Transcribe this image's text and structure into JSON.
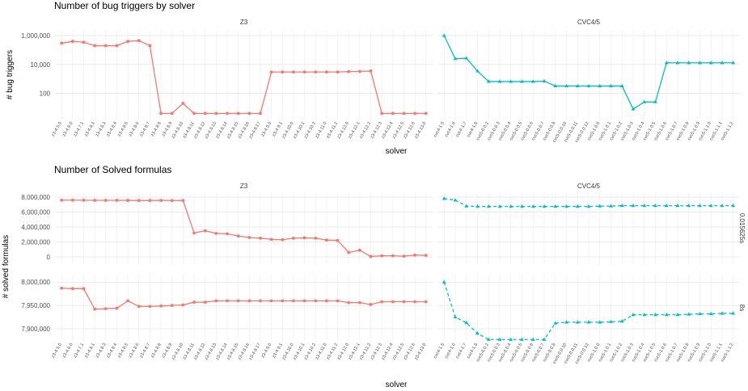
{
  "chart_data": [
    {
      "type": "line",
      "title": "Number of bug triggers by solver",
      "xlabel": "solver",
      "ylabel": "# bug triggers",
      "log_scale": true,
      "grid": true,
      "panels": [
        {
          "name": "Z3",
          "color": "#f8766d",
          "marker": "circle",
          "dash": "solid",
          "categories": [
            "z3-4.5.0",
            "z3-4.6.0",
            "z3-4.7.1",
            "z3-4.8.1",
            "z3-4.8.3",
            "z3-4.8.4",
            "z3-4.8.5",
            "z3-4.8.6",
            "z3-4.8.7",
            "z3-4.8.8",
            "z3-4.8.9",
            "z3-4.8.10",
            "z3-4.8.11",
            "z3-4.8.12",
            "z3-4.8.13",
            "z3-4.8.14",
            "z3-4.8.15",
            "z3-4.8.16",
            "z3-4.8.17",
            "z3-4.9.0",
            "z3-4.9.1",
            "z3-4.10.0",
            "z3-4.10.1",
            "z3-4.10.2",
            "z3-4.11.0",
            "z3-4.11.2",
            "z3-4.12.0",
            "z3-4.12.1",
            "z3-4.12.2",
            "z3-4.12.3",
            "z3-4.12.4",
            "z3-4.12.5",
            "z3-4.12.6",
            "z3-4.13.0"
          ]
        },
        {
          "name": "CVC4/5",
          "color": "#00bfc4",
          "marker": "triangle",
          "dash": "solid",
          "categories": [
            "cvc4-1.5",
            "cvc4-1.6",
            "cvc4-1.7",
            "cvc4-1.8",
            "cvc5-0.0.2",
            "cvc5-0.0.3",
            "cvc5-0.0.4",
            "cvc5-0.0.5",
            "cvc5-0.0.6",
            "cvc5-0.0.7",
            "cvc5-0.0.8",
            "cvc5-0.0.10",
            "cvc5-0.0.11",
            "cvc5-0.0.12",
            "cvc5-1.0.0",
            "cvc5-1.0.1",
            "cvc5-1.0.2",
            "cvc5-1.0.3",
            "cvc5-1.0.4",
            "cvc5-1.0.5",
            "cvc5-1.0.6",
            "cvc5-1.0.7",
            "cvc5-1.0.8",
            "cvc5-1.0.9",
            "cvc5-1.1.0",
            "cvc5-1.1.1",
            "cvc5-1.1.2"
          ]
        }
      ],
      "rows": [
        {
          "ylim": [
            1.5,
            2500000
          ],
          "yticks": [
            100,
            {
              "value": 10000,
              "label": "10,000"
            },
            {
              "value": 1000000,
              "label": "1,000,000"
            }
          ],
          "values": [
            [
              300000,
              400000,
              350000,
              200000,
              200000,
              200000,
              400000,
              450000,
              200000,
              4,
              4,
              20,
              4,
              4,
              4,
              4,
              4,
              4,
              4,
              3000,
              3000,
              3000,
              3000,
              3000,
              3000,
              3000,
              3200,
              3300,
              3500,
              4,
              4,
              4,
              4,
              4
            ],
            [
              1000000,
              25000,
              27000,
              3500,
              650,
              650,
              650,
              650,
              650,
              700,
              320,
              320,
              320,
              320,
              320,
              320,
              320,
              8,
              25,
              25,
              13000,
              13000,
              13000,
              13000,
              13000,
              13000,
              13000
            ]
          ]
        }
      ]
    },
    {
      "type": "line",
      "title": "Number of Solved formulas",
      "xlabel": "solver",
      "ylabel": "# solved formulas",
      "log_scale": false,
      "grid": true,
      "panels": [
        {
          "name": "Z3",
          "color": "#f8766d",
          "marker": "circle",
          "dash": "solid",
          "categories": [
            "z3-4.5.0",
            "z3-4.6.0",
            "z3-4.7.1",
            "z3-4.8.1",
            "z3-4.8.3",
            "z3-4.8.4",
            "z3-4.8.5",
            "z3-4.8.6",
            "z3-4.8.7",
            "z3-4.8.8",
            "z3-4.8.9",
            "z3-4.8.10",
            "z3-4.8.11",
            "z3-4.8.12",
            "z3-4.8.13",
            "z3-4.8.14",
            "z3-4.8.15",
            "z3-4.8.16",
            "z3-4.8.17",
            "z3-4.9.0",
            "z3-4.9.1",
            "z3-4.10.0",
            "z3-4.10.1",
            "z3-4.10.2",
            "z3-4.11.0",
            "z3-4.11.2",
            "z3-4.12.0",
            "z3-4.12.1",
            "z3-4.12.2",
            "z3-4.12.3",
            "z3-4.12.4",
            "z3-4.12.5",
            "z3-4.12.6",
            "z3-4.13.0"
          ]
        },
        {
          "name": "CVC4/5",
          "color": "#00bfc4",
          "marker": "triangle",
          "dash": "dashed",
          "categories": [
            "cvc4-1.5",
            "cvc4-1.6",
            "cvc4-1.7",
            "cvc4-1.8",
            "cvc5-0.0.2",
            "cvc5-0.0.3",
            "cvc5-0.0.4",
            "cvc5-0.0.5",
            "cvc5-0.0.6",
            "cvc5-0.0.7",
            "cvc5-0.0.8",
            "cvc5-0.0.10",
            "cvc5-0.0.11",
            "cvc5-0.0.12",
            "cvc5-1.0.0",
            "cvc5-1.0.1",
            "cvc5-1.0.2",
            "cvc5-1.0.3",
            "cvc5-1.0.4",
            "cvc5-1.0.5",
            "cvc5-1.0.6",
            "cvc5-1.0.7",
            "cvc5-1.0.8",
            "cvc5-1.0.9",
            "cvc5-1.1.0",
            "cvc5-1.1.1",
            "cvc5-1.1.2"
          ]
        }
      ],
      "rows": [
        {
          "name": "0.015625s",
          "ylim": [
            -970000,
            8650000
          ],
          "yticks": [
            0,
            {
              "value": 2000000,
              "label": "2,000,000"
            },
            {
              "value": 4000000,
              "label": "4,000,000"
            },
            {
              "value": 6000000,
              "label": "6,000,000"
            },
            {
              "value": 8000000,
              "label": "8,000,000"
            }
          ],
          "values": [
            [
              7600000,
              7600000,
              7580000,
              7570000,
              7570000,
              7570000,
              7560000,
              7550000,
              7550000,
              7560000,
              7540000,
              7550000,
              3200000,
              3500000,
              3150000,
              3100000,
              2800000,
              2600000,
              2500000,
              2350000,
              2300000,
              2500000,
              2550000,
              2500000,
              2250000,
              2200000,
              600000,
              900000,
              50000,
              150000,
              150000,
              100000,
              250000,
              200000
            ],
            [
              7800000,
              7600000,
              6800000,
              6750000,
              6750000,
              6750000,
              6750000,
              6750000,
              6750000,
              6750000,
              6750000,
              6750000,
              6750000,
              6750000,
              6800000,
              6800000,
              6850000,
              6850000,
              6850000,
              6850000,
              6850000,
              6850000,
              6850000,
              6850000,
              6850000,
              6850000,
              6850000
            ]
          ]
        },
        {
          "name": "8s",
          "ylim": [
            7874000,
            8016000
          ],
          "yticks": [
            {
              "value": 7900000,
              "label": "7,900,000"
            },
            {
              "value": 7950000,
              "label": "7,950,000"
            },
            {
              "value": 8000000,
              "label": "8,000,000"
            }
          ],
          "values": [
            [
              7987000,
              7986000,
              7986000,
              7942000,
              7943000,
              7944000,
              7960000,
              7948000,
              7948000,
              7949000,
              7950000,
              7951000,
              7957000,
              7957000,
              7960000,
              7960000,
              7960000,
              7960000,
              7960000,
              7960000,
              7960000,
              7960000,
              7960000,
              7960000,
              7960000,
              7960000,
              7956000,
              7956000,
              7952000,
              7958000,
              7958000,
              7958000,
              7958000,
              7958000
            ],
            [
              8000000,
              7925000,
              7913000,
              7890000,
              7877000,
              7877000,
              7877000,
              7877000,
              7877000,
              7877000,
              7912000,
              7914000,
              7914000,
              7914000,
              7914000,
              7915000,
              7916000,
              7930000,
              7930000,
              7930000,
              7930000,
              7930000,
              7931000,
              7932000,
              7932000,
              7933000,
              7933000
            ]
          ]
        }
      ]
    }
  ]
}
